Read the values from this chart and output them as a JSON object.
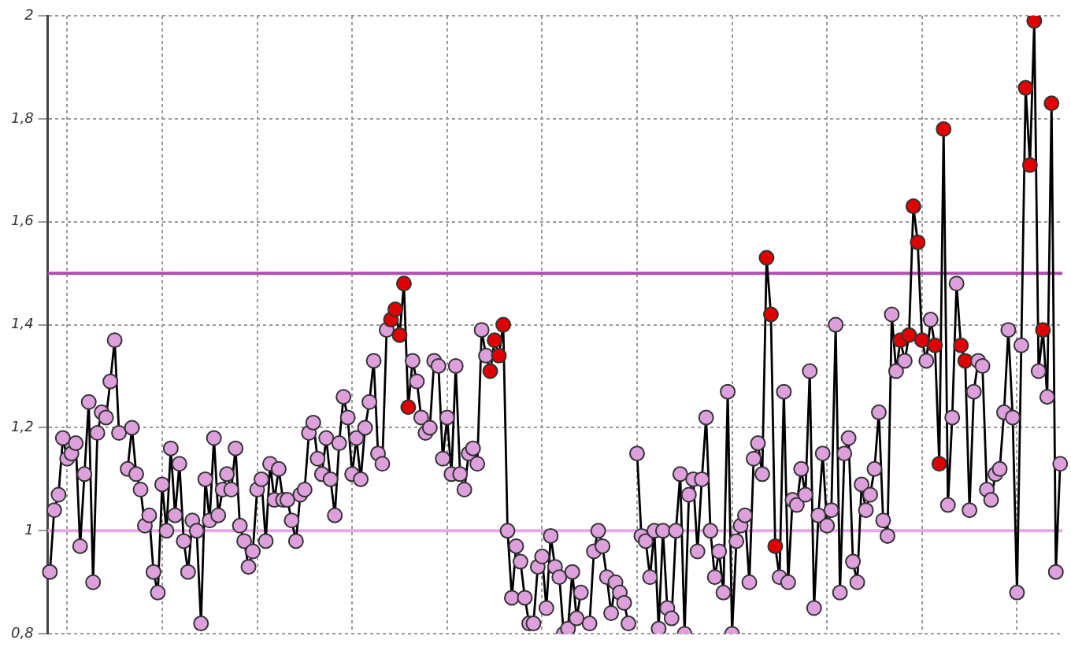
{
  "chart_data": {
    "type": "line",
    "categories": [
      null,
      null,
      null,
      null,
      null,
      null,
      null,
      null,
      null,
      null,
      null,
      null,
      null,
      null,
      null,
      null,
      null,
      null,
      null,
      null,
      null,
      null,
      null,
      null,
      null,
      null,
      null,
      null,
      null,
      null,
      null,
      null,
      null,
      null,
      null,
      null,
      null,
      null,
      null,
      null,
      null,
      null,
      null,
      null,
      null,
      null,
      null,
      null,
      null,
      null,
      null,
      null,
      null,
      null,
      null,
      null,
      null,
      null,
      null,
      null,
      null,
      null,
      null,
      null,
      null,
      null,
      null,
      null,
      null,
      null,
      null,
      null,
      null,
      null,
      null,
      null,
      null,
      null,
      null,
      null,
      null,
      null,
      null,
      null,
      null,
      null,
      null,
      null,
      null,
      null,
      null,
      null,
      null,
      null,
      null,
      null,
      null,
      null,
      null,
      null,
      null,
      null,
      null,
      null,
      null,
      null,
      null,
      null,
      null,
      null,
      null,
      null,
      null,
      null,
      null,
      null,
      null,
      null,
      null,
      null,
      null,
      null,
      null,
      null,
      null,
      null,
      null,
      null,
      null,
      null,
      null,
      null,
      null,
      null,
      null,
      null,
      null,
      null,
      null,
      null,
      null,
      null,
      null,
      null,
      null,
      null,
      null,
      null,
      null,
      null,
      null,
      null,
      null,
      null,
      null,
      null,
      null,
      null,
      null,
      null,
      null,
      null,
      null,
      null,
      null,
      null,
      null,
      null,
      null,
      null,
      null,
      null,
      null,
      null,
      null,
      null,
      null,
      null,
      null,
      null,
      null,
      null,
      null,
      null,
      null,
      null,
      null,
      null,
      null,
      null,
      null,
      null,
      null,
      null,
      null,
      null,
      null,
      null,
      null,
      null,
      null,
      null,
      null,
      null,
      null,
      null,
      null,
      null,
      null,
      null,
      null,
      null,
      null,
      null,
      null,
      null,
      null,
      null,
      null,
      null,
      null,
      null,
      null,
      null,
      null,
      null,
      null,
      null,
      null,
      null,
      null,
      null,
      null,
      null,
      null
    ],
    "series": [
      {
        "color": "#000000",
        "values": [
          0.92,
          1.04,
          1.07,
          1.18,
          1.14,
          1.15,
          1.17,
          0.97,
          1.11,
          1.25,
          0.9,
          1.19,
          1.23,
          1.22,
          1.29,
          1.37,
          1.19,
          null,
          1.12,
          1.2,
          1.11,
          1.08,
          1.01,
          1.03,
          0.92,
          0.88,
          1.09,
          1.0,
          1.16,
          1.03,
          1.13,
          0.98,
          0.92,
          1.02,
          1.0,
          0.82,
          1.1,
          1.02,
          1.18,
          1.03,
          1.08,
          1.11,
          1.08,
          1.16,
          1.01,
          0.98,
          0.93,
          0.96,
          1.08,
          1.1,
          0.98,
          1.13,
          1.06,
          1.12,
          1.06,
          1.06,
          1.02,
          0.98,
          1.07,
          1.08,
          1.19,
          1.21,
          1.14,
          1.11,
          1.18,
          1.1,
          1.03,
          1.17,
          1.26,
          1.22,
          1.11,
          1.18,
          1.1,
          1.2,
          1.25,
          1.33,
          1.15,
          1.13,
          1.39,
          1.41,
          1.43,
          1.38,
          1.48,
          1.24,
          1.33,
          1.29,
          1.22,
          1.19,
          1.2,
          1.33,
          1.32,
          1.14,
          1.22,
          1.11,
          1.32,
          1.11,
          1.08,
          1.15,
          1.16,
          1.13,
          1.39,
          1.34,
          1.31,
          1.37,
          1.34,
          1.4,
          1.0,
          0.87,
          0.97,
          0.94,
          0.87,
          0.82,
          0.82,
          0.93,
          0.95,
          0.85,
          0.99,
          0.93,
          0.91,
          0.8,
          0.81,
          0.92,
          0.83,
          0.88,
          null,
          0.82,
          0.96,
          1.0,
          0.97,
          0.91,
          0.84,
          0.9,
          0.88,
          0.86,
          0.82,
          null,
          1.15,
          0.99,
          0.98,
          0.91,
          1.0,
          0.81,
          1.0,
          0.85,
          0.83,
          1.0,
          1.11,
          0.8,
          1.07,
          1.1,
          0.96,
          1.1,
          1.22,
          1.0,
          0.91,
          0.96,
          0.88,
          1.27,
          0.8,
          0.98,
          1.01,
          1.03,
          0.9,
          1.14,
          1.17,
          1.11,
          1.53,
          1.42,
          0.97,
          0.91,
          1.27,
          0.9,
          1.06,
          1.05,
          1.12,
          1.07,
          1.31,
          0.85,
          1.03,
          1.15,
          1.01,
          1.04,
          1.4,
          0.88,
          1.15,
          1.18,
          0.94,
          0.9,
          1.09,
          1.04,
          1.07,
          1.12,
          1.23,
          1.02,
          0.99,
          1.42,
          1.31,
          1.37,
          1.33,
          1.38,
          1.63,
          1.56,
          1.37,
          1.33,
          1.41,
          1.36,
          1.13,
          1.78,
          1.05,
          1.22,
          1.48,
          1.36,
          1.33,
          1.04,
          1.27,
          1.33,
          1.32,
          1.08,
          1.06,
          1.11,
          1.12,
          1.23,
          1.39,
          1.22,
          0.88,
          1.36,
          1.86,
          1.71,
          1.99,
          1.31,
          1.39,
          1.26,
          1.83,
          0.92,
          1.13
        ],
        "colors": [
          "#dda0dd",
          "#dda0dd",
          "#dda0dd",
          "#dda0dd",
          "#dda0dd",
          "#dda0dd",
          "#dda0dd",
          "#dda0dd",
          "#dda0dd",
          "#dda0dd",
          "#dda0dd",
          "#dda0dd",
          "#dda0dd",
          "#dda0dd",
          "#dda0dd",
          "#dda0dd",
          "#dda0dd",
          "#dda0dd",
          "#dda0dd",
          "#dda0dd",
          "#dda0dd",
          "#dda0dd",
          "#dda0dd",
          "#dda0dd",
          "#dda0dd",
          "#dda0dd",
          "#dda0dd",
          "#dda0dd",
          "#dda0dd",
          "#dda0dd",
          "#dda0dd",
          "#dda0dd",
          "#dda0dd",
          "#dda0dd",
          "#dda0dd",
          "#dda0dd",
          "#dda0dd",
          "#dda0dd",
          "#dda0dd",
          "#dda0dd",
          "#dda0dd",
          "#dda0dd",
          "#dda0dd",
          "#dda0dd",
          "#dda0dd",
          "#dda0dd",
          "#dda0dd",
          "#dda0dd",
          "#dda0dd",
          "#dda0dd",
          "#dda0dd",
          "#dda0dd",
          "#dda0dd",
          "#dda0dd",
          "#dda0dd",
          "#dda0dd",
          "#dda0dd",
          "#dda0dd",
          "#dda0dd",
          "#dda0dd",
          "#dda0dd",
          "#dda0dd",
          "#dda0dd",
          "#dda0dd",
          "#dda0dd",
          "#dda0dd",
          "#dda0dd",
          "#dda0dd",
          "#dda0dd",
          "#dda0dd",
          "#dda0dd",
          "#dda0dd",
          "#dda0dd",
          "#dda0dd",
          "#dda0dd",
          "#dda0dd",
          "#dda0dd",
          "#dda0dd",
          "#dda0dd",
          "#e00000",
          "#e00000",
          "#e00000",
          "#e00000",
          "#e00000",
          "#dda0dd",
          "#dda0dd",
          "#dda0dd",
          "#dda0dd",
          "#dda0dd",
          "#dda0dd",
          "#dda0dd",
          "#dda0dd",
          "#dda0dd",
          "#dda0dd",
          "#dda0dd",
          "#dda0dd",
          "#dda0dd",
          "#dda0dd",
          "#dda0dd",
          "#dda0dd",
          "#dda0dd",
          "#dda0dd",
          "#e00000",
          "#e00000",
          "#e00000",
          "#e00000",
          "#dda0dd",
          "#dda0dd",
          "#dda0dd",
          "#dda0dd",
          "#dda0dd",
          "#dda0dd",
          "#dda0dd",
          "#dda0dd",
          "#dda0dd",
          "#dda0dd",
          "#dda0dd",
          "#dda0dd",
          "#dda0dd",
          "#dda0dd",
          "#dda0dd",
          "#dda0dd",
          "#dda0dd",
          "#dda0dd",
          "#dda0dd",
          "#dda0dd",
          "#dda0dd",
          "#dda0dd",
          "#dda0dd",
          "#dda0dd",
          "#dda0dd",
          "#dda0dd",
          "#dda0dd",
          "#dda0dd",
          "#dda0dd",
          "#dda0dd",
          "#dda0dd",
          "#dda0dd",
          "#dda0dd",
          "#dda0dd",
          "#dda0dd",
          "#dda0dd",
          "#dda0dd",
          "#dda0dd",
          "#dda0dd",
          "#dda0dd",
          "#dda0dd",
          "#dda0dd",
          "#dda0dd",
          "#dda0dd",
          "#dda0dd",
          "#dda0dd",
          "#dda0dd",
          "#dda0dd",
          "#dda0dd",
          "#dda0dd",
          "#dda0dd",
          "#dda0dd",
          "#dda0dd",
          "#dda0dd",
          "#dda0dd",
          "#dda0dd",
          "#dda0dd",
          "#dda0dd",
          "#dda0dd",
          "#dda0dd",
          "#e00000",
          "#e00000",
          "#e00000",
          "#dda0dd",
          "#dda0dd",
          "#dda0dd",
          "#dda0dd",
          "#dda0dd",
          "#dda0dd",
          "#dda0dd",
          "#dda0dd",
          "#dda0dd",
          "#dda0dd",
          "#dda0dd",
          "#dda0dd",
          "#dda0dd",
          "#dda0dd",
          "#dda0dd",
          "#dda0dd",
          "#dda0dd",
          "#dda0dd",
          "#dda0dd",
          "#dda0dd",
          "#dda0dd",
          "#dda0dd",
          "#dda0dd",
          "#dda0dd",
          "#dda0dd",
          "#dda0dd",
          "#dda0dd",
          "#dda0dd",
          "#e00000",
          "#dda0dd",
          "#e00000",
          "#e00000",
          "#e00000",
          "#e00000",
          "#dda0dd",
          "#dda0dd",
          "#e00000",
          "#e00000",
          "#e00000",
          "#dda0dd",
          "#dda0dd",
          "#dda0dd",
          "#e00000",
          "#e00000",
          "#dda0dd",
          "#dda0dd",
          "#dda0dd",
          "#dda0dd",
          "#dda0dd",
          "#dda0dd",
          "#dda0dd",
          "#dda0dd",
          "#dda0dd",
          "#dda0dd",
          "#dda0dd",
          "#dda0dd",
          "#dda0dd",
          "#e00000",
          "#e00000",
          "#e00000",
          "#dda0dd",
          "#e00000",
          "#dda0dd",
          "#e00000",
          "#dda0dd",
          "#dda0dd"
        ]
      }
    ],
    "ylim": [
      0.8,
      2
    ],
    "yticks": [
      {
        "value": 0.8,
        "label": "0,8"
      },
      1,
      {
        "value": 1.2,
        "label": "1,2"
      },
      {
        "value": 1.4,
        "label": "1,4"
      },
      {
        "value": 1.6,
        "label": "1,6"
      },
      {
        "value": 1.8,
        "label": "1,8"
      },
      2
    ],
    "tick_labels": "y",
    "grid": true,
    "marker": "circle",
    "line_style": "solid",
    "ref_lines": [
      {
        "axis": "y",
        "value": 1.5,
        "color": "#b04cb0"
      },
      {
        "axis": "y",
        "value": 1,
        "color": "#e8a8e8"
      }
    ]
  }
}
